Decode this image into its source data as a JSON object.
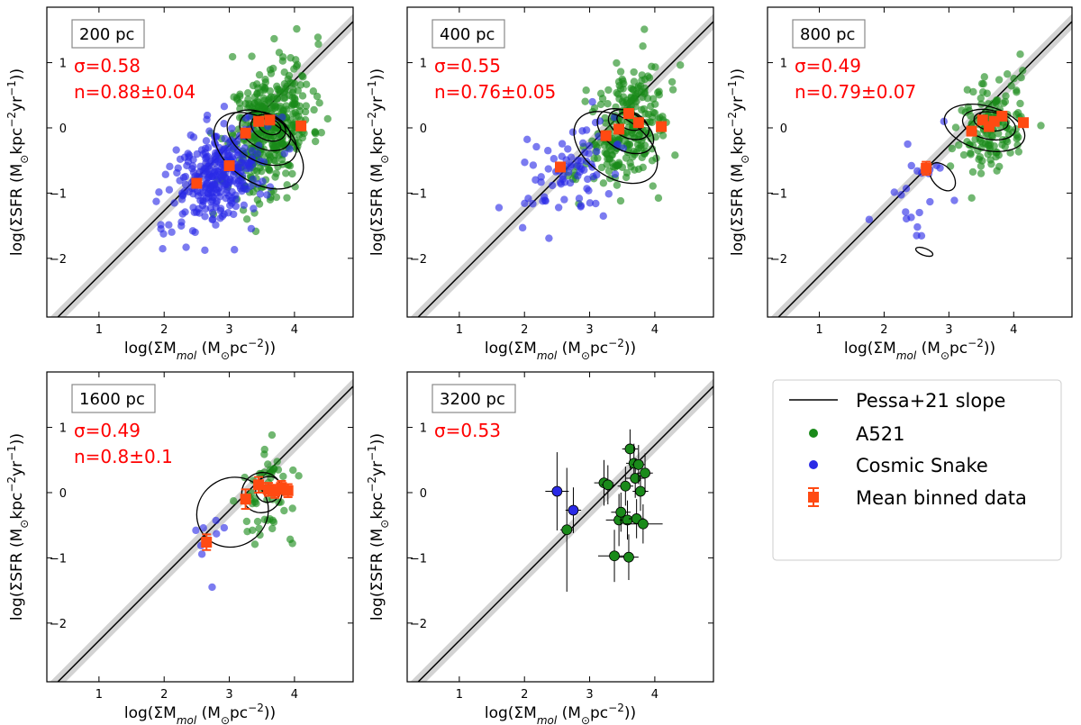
{
  "figure": {
    "colors": {
      "a521": "#1a8a1a",
      "snake": "#2a2ae6",
      "binned": "#ff4a12",
      "annotation": "#ff0000",
      "band": "#d3d3d3",
      "line": "#000000"
    }
  },
  "legend": {
    "items": [
      {
        "label": "Pessa+21 slope",
        "symbol": "line"
      },
      {
        "label": "A521",
        "symbol": "green-dot"
      },
      {
        "label": "Cosmic Snake",
        "symbol": "blue-dot"
      },
      {
        "label": "Mean binned data",
        "symbol": "orange-square-errorbar"
      }
    ]
  },
  "chart_data": [
    {
      "type": "scatter",
      "scale_label": "200 pc",
      "sigma_label": "σ=0.58",
      "slope_label": "n=0.88±0.04",
      "xlabel": "log(ΣM_mol (M⊙pc⁻²))",
      "ylabel": "log(ΣSFR (M⊙kpc⁻²yr⁻¹))",
      "xlim": [
        0.2,
        4.9
      ],
      "ylim": [
        -2.9,
        1.85
      ],
      "xticks": [
        1,
        2,
        3,
        4
      ],
      "yticks": [
        -2,
        -1,
        0,
        1
      ],
      "reference_line": {
        "slope": 1.0,
        "intercept": -3.27,
        "band_width": 0.12
      },
      "clouds": [
        {
          "series": "A521",
          "cx": 3.62,
          "cy": 0.0,
          "sx": 0.32,
          "sy": 0.52,
          "rho": 0.35,
          "n": 420,
          "seed": 11
        },
        {
          "series": "Cosmic Snake",
          "cx": 2.85,
          "cy": -0.75,
          "sx": 0.35,
          "sy": 0.42,
          "rho": 0.35,
          "n": 300,
          "seed": 12
        }
      ],
      "binned": {
        "x": [
          2.5,
          3.0,
          3.25,
          3.45,
          3.62,
          4.1
        ],
        "y": [
          -0.85,
          -0.58,
          -0.08,
          0.1,
          0.12,
          0.03
        ],
        "yerr": [
          0.04,
          0.04,
          0.04,
          0.04,
          0.04,
          0.04
        ]
      },
      "contours": [
        {
          "cx": 3.45,
          "cy": -0.35,
          "rx": 1.05,
          "ry": 1.4,
          "rot": 55
        },
        {
          "cx": 3.5,
          "cy": -0.15,
          "rx": 0.8,
          "ry": 1.05,
          "rot": 60
        },
        {
          "cx": 3.55,
          "cy": -0.05,
          "rx": 0.6,
          "ry": 0.75,
          "rot": 65
        },
        {
          "cx": 3.6,
          "cy": 0.0,
          "rx": 0.42,
          "ry": 0.5,
          "rot": 68
        },
        {
          "cx": 3.62,
          "cy": 0.02,
          "rx": 0.26,
          "ry": 0.32,
          "rot": 70
        }
      ]
    },
    {
      "type": "scatter",
      "scale_label": "400 pc",
      "sigma_label": "σ=0.55",
      "slope_label": "n=0.76±0.05",
      "xlabel": "log(ΣM_mol (M⊙pc⁻²))",
      "ylabel": "log(ΣSFR (M⊙kpc⁻²yr⁻¹))",
      "xlim": [
        0.2,
        4.9
      ],
      "ylim": [
        -2.9,
        1.85
      ],
      "xticks": [
        1,
        2,
        3,
        4
      ],
      "yticks": [
        -2,
        -1,
        0,
        1
      ],
      "reference_line": {
        "slope": 1.0,
        "intercept": -3.27,
        "band_width": 0.12
      },
      "clouds": [
        {
          "series": "A521",
          "cx": 3.6,
          "cy": 0.0,
          "sx": 0.32,
          "sy": 0.45,
          "rho": 0.35,
          "n": 260,
          "seed": 21
        },
        {
          "series": "Cosmic Snake",
          "cx": 2.65,
          "cy": -0.65,
          "sx": 0.35,
          "sy": 0.38,
          "rho": 0.4,
          "n": 80,
          "seed": 22
        }
      ],
      "binned": {
        "x": [
          2.55,
          3.25,
          3.45,
          3.6,
          3.75,
          4.1
        ],
        "y": [
          -0.6,
          -0.12,
          -0.02,
          0.22,
          0.08,
          0.02
        ],
        "yerr": [
          0.04,
          0.04,
          0.04,
          0.04,
          0.04,
          0.04
        ]
      },
      "contours": [
        {
          "cx": 3.4,
          "cy": -0.3,
          "rx": 1.0,
          "ry": 1.3,
          "rot": 55
        },
        {
          "cx": 3.55,
          "cy": -0.05,
          "rx": 0.65,
          "ry": 0.85,
          "rot": 60
        },
        {
          "cx": 3.6,
          "cy": 0.05,
          "rx": 0.45,
          "ry": 0.6,
          "rot": 65
        },
        {
          "cx": 3.62,
          "cy": 0.1,
          "rx": 0.28,
          "ry": 0.38,
          "rot": 70
        }
      ]
    },
    {
      "type": "scatter",
      "scale_label": "800 pc",
      "sigma_label": "σ=0.49",
      "slope_label": "n=0.79±0.07",
      "xlabel": "log(ΣM_mol (M⊙pc⁻²))",
      "ylabel": "log(ΣSFR (M⊙kpc⁻²yr⁻¹))",
      "xlim": [
        0.2,
        4.9
      ],
      "ylim": [
        -2.9,
        1.85
      ],
      "xticks": [
        1,
        2,
        3,
        4
      ],
      "yticks": [
        -2,
        -1,
        0,
        1
      ],
      "reference_line": {
        "slope": 1.0,
        "intercept": -3.27,
        "band_width": 0.12
      },
      "clouds": [
        {
          "series": "A521",
          "cx": 3.65,
          "cy": 0.0,
          "sx": 0.28,
          "sy": 0.4,
          "rho": 0.3,
          "n": 140,
          "seed": 31
        },
        {
          "series": "Cosmic Snake",
          "cx": 2.6,
          "cy": -0.9,
          "sx": 0.3,
          "sy": 0.45,
          "rho": 0.4,
          "n": 22,
          "seed": 32
        }
      ],
      "binned": {
        "x": [
          2.65,
          3.35,
          3.52,
          3.62,
          3.7,
          3.82,
          4.15
        ],
        "y": [
          -0.62,
          -0.05,
          0.12,
          0.02,
          0.1,
          0.18,
          0.08
        ],
        "yerr": [
          0.1,
          0.05,
          0.05,
          0.05,
          0.05,
          0.05,
          0.05
        ]
      },
      "contours": [
        {
          "cx": 3.55,
          "cy": 0.0,
          "rx": 0.75,
          "ry": 1.15,
          "rot": 75
        },
        {
          "cx": 3.62,
          "cy": 0.05,
          "rx": 0.5,
          "ry": 0.75,
          "rot": 78
        },
        {
          "cx": 3.65,
          "cy": 0.1,
          "rx": 0.32,
          "ry": 0.48,
          "rot": 80
        },
        {
          "cx": 2.9,
          "cy": -0.75,
          "rx": 0.35,
          "ry": 0.45,
          "rot": 40
        },
        {
          "cx": 2.62,
          "cy": -1.9,
          "rx": 0.12,
          "ry": 0.25,
          "rot": 70
        }
      ]
    },
    {
      "type": "scatter",
      "scale_label": "1600 pc",
      "sigma_label": "σ=0.49",
      "slope_label": "n=0.8±0.1",
      "xlabel": "log(ΣM_mol (M⊙pc⁻²))",
      "ylabel": "log(ΣSFR (M⊙kpc⁻²yr⁻¹))",
      "xlim": [
        0.2,
        4.9
      ],
      "ylim": [
        -2.9,
        1.85
      ],
      "xticks": [
        1,
        2,
        3,
        4
      ],
      "yticks": [
        -2,
        -1,
        0,
        1
      ],
      "reference_line": {
        "slope": 1.0,
        "intercept": -3.27,
        "band_width": 0.12
      },
      "clouds": [
        {
          "series": "A521",
          "cx": 3.65,
          "cy": 0.0,
          "sx": 0.25,
          "sy": 0.38,
          "rho": 0.3,
          "n": 55,
          "seed": 41
        },
        {
          "series": "Cosmic Snake",
          "cx": 2.45,
          "cy": -0.85,
          "sx": 0.25,
          "sy": 0.3,
          "rho": 0.4,
          "n": 8,
          "seed": 42
        }
      ],
      "binned": {
        "x": [
          2.65,
          3.25,
          3.45,
          3.6,
          3.7,
          3.8,
          3.9
        ],
        "y": [
          -0.76,
          -0.1,
          0.12,
          0.05,
          0.02,
          0.08,
          0.03
        ],
        "yerr": [
          0.12,
          0.15,
          0.12,
          0.1,
          0.1,
          0.1,
          0.1
        ]
      },
      "contours": [
        {
          "cx": 3.05,
          "cy": -0.3,
          "rx": 1.25,
          "ry": 0.95,
          "rot": 35
        },
        {
          "cx": 3.5,
          "cy": 0.0,
          "rx": 0.7,
          "ry": 0.55,
          "rot": 45
        },
        {
          "cx": 3.6,
          "cy": 0.05,
          "rx": 0.45,
          "ry": 0.35,
          "rot": 50
        }
      ]
    },
    {
      "type": "scatter",
      "scale_label": "3200 pc",
      "sigma_label": "σ=0.53",
      "xlabel": "log(ΣM_mol (M⊙pc⁻²))",
      "ylabel": "log(ΣSFR (M⊙kpc⁻²yr⁻¹))",
      "xlim": [
        0.2,
        4.9
      ],
      "ylim": [
        -2.9,
        1.85
      ],
      "xticks": [
        1,
        2,
        3,
        4
      ],
      "yticks": [
        -2,
        -1,
        0,
        1
      ],
      "reference_line": {
        "slope": 1.0,
        "intercept": -3.27,
        "band_width": 0.12
      },
      "points": [
        {
          "series": "Cosmic Snake",
          "x": 2.5,
          "y": 0.02,
          "xerr": 0.18,
          "yerr": 0.6
        },
        {
          "series": "Cosmic Snake",
          "x": 2.75,
          "y": -0.27,
          "xerr": 0.12,
          "yerr": 0.35
        },
        {
          "series": "A521",
          "x": 2.65,
          "y": -0.57,
          "xerr": 0.1,
          "yerr": 0.95
        },
        {
          "series": "A521",
          "x": 3.22,
          "y": 0.15,
          "xerr": 0.15,
          "yerr": 0.35
        },
        {
          "series": "A521",
          "x": 3.28,
          "y": 0.12,
          "xerr": 0.1,
          "yerr": 0.3
        },
        {
          "series": "A521",
          "x": 3.38,
          "y": -0.97,
          "xerr": 0.25,
          "yerr": 0.4
        },
        {
          "series": "A521",
          "x": 3.45,
          "y": -0.42,
          "xerr": 0.2,
          "yerr": 0.4
        },
        {
          "series": "A521",
          "x": 3.48,
          "y": -0.3,
          "xerr": 0.15,
          "yerr": 0.3
        },
        {
          "series": "A521",
          "x": 3.55,
          "y": 0.1,
          "xerr": 0.12,
          "yerr": 0.3
        },
        {
          "series": "A521",
          "x": 3.58,
          "y": -0.42,
          "xerr": 0.12,
          "yerr": 0.3
        },
        {
          "series": "A521",
          "x": 3.6,
          "y": -0.99,
          "xerr": 0.15,
          "yerr": 0.35
        },
        {
          "series": "A521",
          "x": 3.62,
          "y": 0.67,
          "xerr": 0.12,
          "yerr": 0.3
        },
        {
          "series": "A521",
          "x": 3.68,
          "y": 0.45,
          "xerr": 0.12,
          "yerr": 0.3
        },
        {
          "series": "A521",
          "x": 3.7,
          "y": 0.22,
          "xerr": 0.15,
          "yerr": 0.3
        },
        {
          "series": "A521",
          "x": 3.72,
          "y": -0.4,
          "xerr": 0.12,
          "yerr": 0.3
        },
        {
          "series": "A521",
          "x": 3.75,
          "y": 0.43,
          "xerr": 0.1,
          "yerr": 0.3
        },
        {
          "series": "A521",
          "x": 3.78,
          "y": 0.02,
          "xerr": 0.12,
          "yerr": 0.3
        },
        {
          "series": "A521",
          "x": 3.82,
          "y": -0.48,
          "xerr": 0.3,
          "yerr": 0.3
        },
        {
          "series": "A521",
          "x": 3.85,
          "y": 0.3,
          "xerr": 0.12,
          "yerr": 0.3
        }
      ]
    }
  ]
}
